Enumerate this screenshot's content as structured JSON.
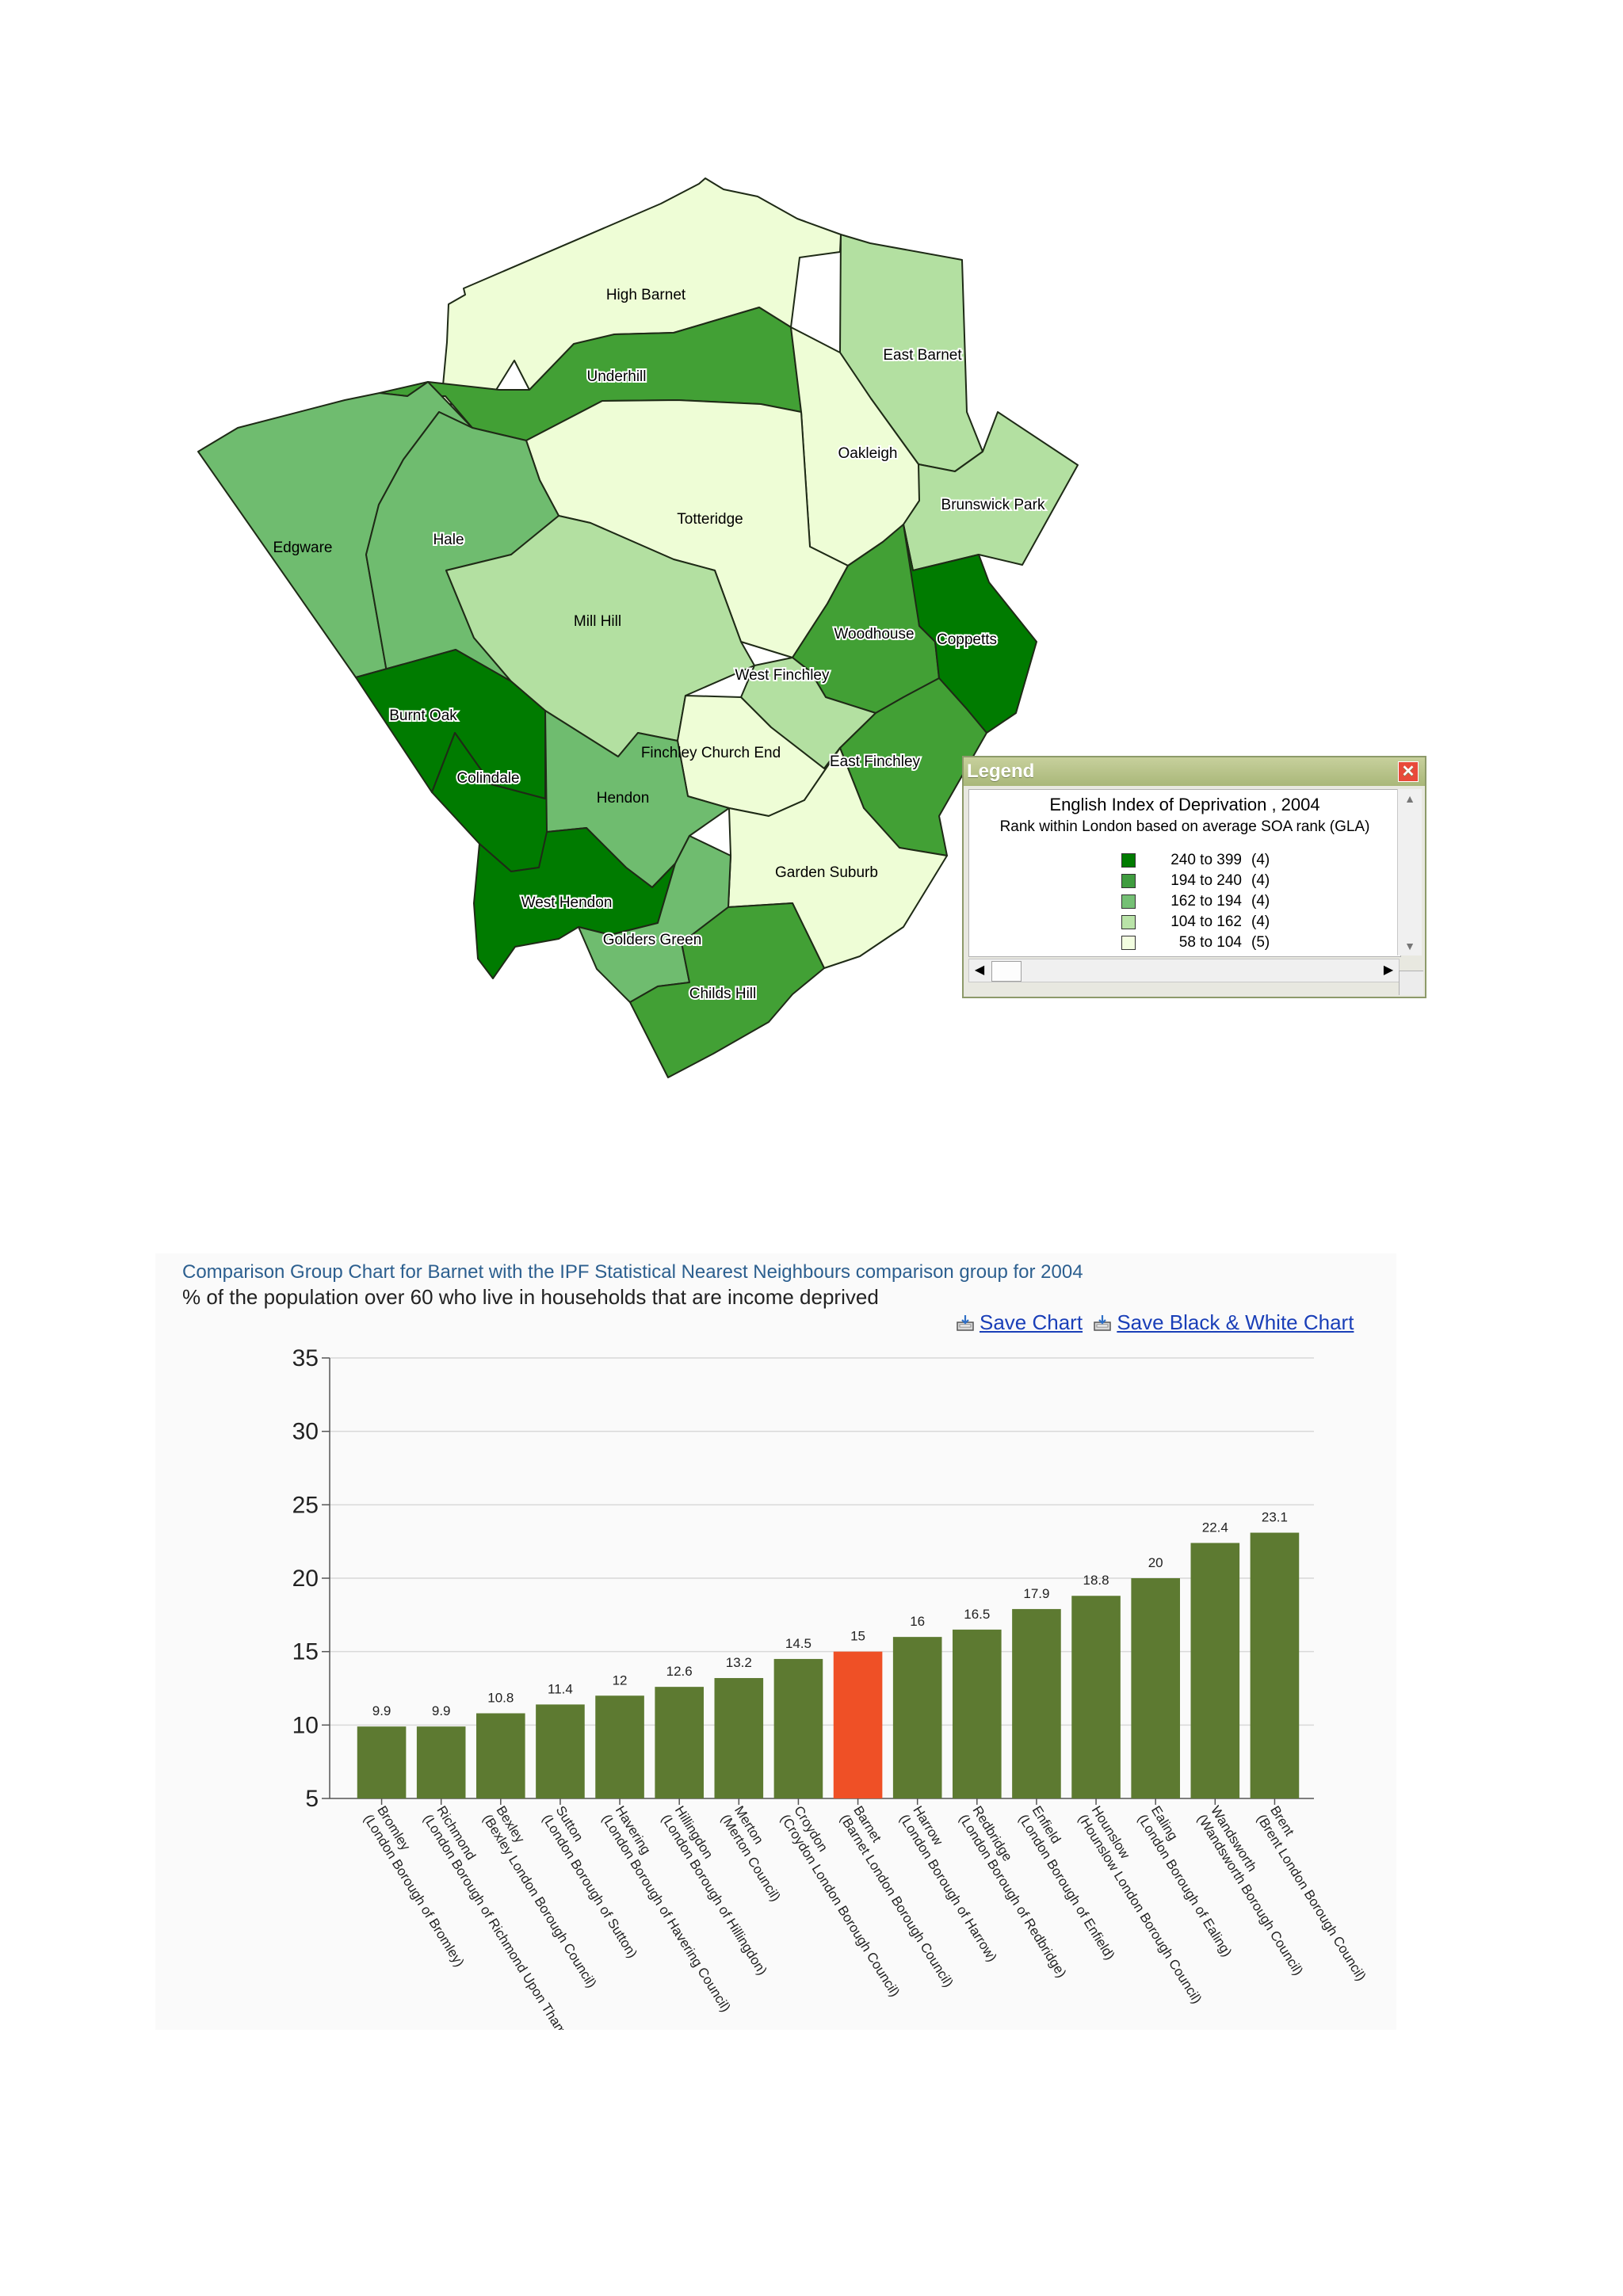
{
  "map": {
    "wards": [
      {
        "name": "High Barnet",
        "rank": "58 to 104"
      },
      {
        "name": "Underhill",
        "rank": "162 to 194"
      },
      {
        "name": "East Barnet",
        "rank": "104 to 162"
      },
      {
        "name": "Oakleigh",
        "rank": "58 to 104"
      },
      {
        "name": "Brunswick Park",
        "rank": "104 to 162"
      },
      {
        "name": "Totteridge",
        "rank": "58 to 104"
      },
      {
        "name": "Edgware",
        "rank": "194 to 240"
      },
      {
        "name": "Hale",
        "rank": "194 to 240"
      },
      {
        "name": "Mill Hill",
        "rank": "104 to 162"
      },
      {
        "name": "Woodhouse",
        "rank": "162 to 194"
      },
      {
        "name": "Coppetts",
        "rank": "240 to 399"
      },
      {
        "name": "West Finchley",
        "rank": "104 to 162"
      },
      {
        "name": "Burnt Oak",
        "rank": "240 to 399"
      },
      {
        "name": "Colindale",
        "rank": "240 to 399"
      },
      {
        "name": "Finchley Church End",
        "rank": "58 to 104"
      },
      {
        "name": "East Finchley",
        "rank": "162 to 194"
      },
      {
        "name": "Hendon",
        "rank": "194 to 240"
      },
      {
        "name": "Garden Suburb",
        "rank": "58 to 104"
      },
      {
        "name": "West Hendon",
        "rank": "240 to 399"
      },
      {
        "name": "Golders Green",
        "rank": "194 to 240"
      },
      {
        "name": "Childs Hill",
        "rank": "162 to 194"
      }
    ],
    "colors": {
      "240 to 399": "#007b00",
      "194 to 240": "#6fbc6f",
      "162 to 194": "#42a035",
      "104 to 162": "#b3e0a1",
      "58 to 104": "#eefdd6"
    }
  },
  "legend": {
    "title": "Legend",
    "close_symbol": "✕",
    "heading": "English Index of Deprivation , 2004",
    "subheading": "Rank within London based on average SOA rank (GLA)",
    "items": [
      {
        "range": "240 to 399",
        "count": "(4)",
        "color": "#007b00"
      },
      {
        "range": "194 to 240",
        "count": "(4)",
        "color": "#3f9c3f"
      },
      {
        "range": "162 to 194",
        "count": "(4)",
        "color": "#75c075"
      },
      {
        "range": "104 to 162",
        "count": "(4)",
        "color": "#b9e3a8"
      },
      {
        "range": "58 to 104",
        "count": "(5)",
        "color": "#f2fde0"
      }
    ]
  },
  "chart_panel": {
    "title": "Comparison Group Chart for Barnet with the IPF Statistical Nearest Neighbours comparison group for 2004",
    "subtitle": "% of the population over 60 who live in households that are income deprived",
    "save_chart_label": "Save Chart",
    "save_bw_label": "Save Black & White Chart"
  },
  "chart_data": {
    "type": "bar",
    "title": "Comparison Group Chart for Barnet with the IPF Statistical Nearest Neighbours comparison group for 2004",
    "ylabel": "% of the population over 60 who live in households that are income deprived",
    "xlabel": "",
    "ylim": [
      5,
      35
    ],
    "yticks": [
      5,
      10,
      15,
      20,
      25,
      30,
      35
    ],
    "grid": true,
    "colors": {
      "default": "#5d7a31",
      "highlight": "#ef5026"
    },
    "highlight": "Barnet",
    "categories": [
      {
        "name": "Bromley",
        "detail": "(London Borough of Bromley)"
      },
      {
        "name": "Richmond",
        "detail": "(London Borough of Richmond Upon Thames)"
      },
      {
        "name": "Bexley",
        "detail": "(Bexley London Borough Council)"
      },
      {
        "name": "Sutton",
        "detail": "(London Borough of Sutton)"
      },
      {
        "name": "Havering",
        "detail": "(London Borough of Havering Council)"
      },
      {
        "name": "Hillingdon",
        "detail": "(London Borough of Hillingdon)"
      },
      {
        "name": "Merton",
        "detail": "(Merton Council)"
      },
      {
        "name": "Croydon",
        "detail": "(Croydon London Borough Council)"
      },
      {
        "name": "Barnet",
        "detail": "(Barnet London Borough Council)"
      },
      {
        "name": "Harrow",
        "detail": "(London Borough of Harrow)"
      },
      {
        "name": "Redbridge",
        "detail": "(London Borough of Redbridge)"
      },
      {
        "name": "Enfield",
        "detail": "(London Borough of Enfield)"
      },
      {
        "name": "Hounslow",
        "detail": "(Hounslow London Borough Council)"
      },
      {
        "name": "Ealing",
        "detail": "(London Borough of Ealing)"
      },
      {
        "name": "Wandsworth",
        "detail": "(Wandsworth Borough Council)"
      },
      {
        "name": "Brent",
        "detail": "(Brent London Borough Council)"
      }
    ],
    "values": [
      9.9,
      9.9,
      10.8,
      11.4,
      12,
      12.6,
      13.2,
      14.5,
      15,
      16,
      16.5,
      17.9,
      18.8,
      20,
      22.4,
      23.1
    ]
  }
}
